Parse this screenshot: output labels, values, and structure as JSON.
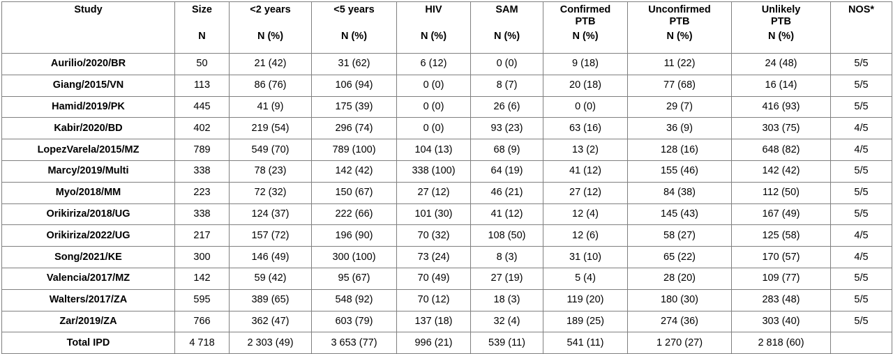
{
  "header": {
    "columns": [
      {
        "label": "Study",
        "sub": ""
      },
      {
        "label": "Size",
        "sub": "N"
      },
      {
        "label": "<2 years",
        "sub": "N (%)"
      },
      {
        "label": "<5 years",
        "sub": "N (%)"
      },
      {
        "label": "HIV",
        "sub": "N (%)"
      },
      {
        "label": "SAM",
        "sub": "N (%)"
      },
      {
        "label": "Confirmed\nPTB",
        "sub": "N (%)"
      },
      {
        "label": "Unconfirmed\nPTB",
        "sub": "N (%)"
      },
      {
        "label": "Unlikely\nPTB",
        "sub": "N (%)"
      },
      {
        "label": "NOS*",
        "sub": ""
      }
    ]
  },
  "rows": [
    [
      "Aurilio/2020/BR",
      "50",
      "21 (42)",
      "31 (62)",
      "6 (12)",
      "0 (0)",
      "9 (18)",
      "11 (22)",
      "24 (48)",
      "5/5"
    ],
    [
      "Giang/2015/VN",
      "113",
      "86 (76)",
      "106 (94)",
      "0 (0)",
      "8 (7)",
      "20 (18)",
      "77 (68)",
      "16 (14)",
      "5/5"
    ],
    [
      "Hamid/2019/PK",
      "445",
      "41 (9)",
      "175 (39)",
      "0 (0)",
      "26 (6)",
      "0 (0)",
      "29 (7)",
      "416 (93)",
      "5/5"
    ],
    [
      "Kabir/2020/BD",
      "402",
      "219 (54)",
      "296 (74)",
      "0 (0)",
      "93 (23)",
      "63 (16)",
      "36 (9)",
      "303 (75)",
      "4/5"
    ],
    [
      "LopezVarela/2015/MZ",
      "789",
      "549 (70)",
      "789 (100)",
      "104 (13)",
      "68 (9)",
      "13 (2)",
      "128 (16)",
      "648 (82)",
      "4/5"
    ],
    [
      "Marcy/2019/Multi",
      "338",
      "78 (23)",
      "142 (42)",
      "338 (100)",
      "64 (19)",
      "41 (12)",
      "155 (46)",
      "142 (42)",
      "5/5"
    ],
    [
      "Myo/2018/MM",
      "223",
      "72 (32)",
      "150 (67)",
      "27 (12)",
      "46 (21)",
      "27 (12)",
      "84 (38)",
      "112 (50)",
      "5/5"
    ],
    [
      "Orikiriza/2018/UG",
      "338",
      "124 (37)",
      "222 (66)",
      "101 (30)",
      "41 (12)",
      "12 (4)",
      "145 (43)",
      "167 (49)",
      "5/5"
    ],
    [
      "Orikiriza/2022/UG",
      "217",
      "157 (72)",
      "196 (90)",
      "70 (32)",
      "108 (50)",
      "12 (6)",
      "58 (27)",
      "125 (58)",
      "4/5"
    ],
    [
      "Song/2021/KE",
      "300",
      "146 (49)",
      "300 (100)",
      "73 (24)",
      "8 (3)",
      "31 (10)",
      "65 (22)",
      "170 (57)",
      "4/5"
    ],
    [
      "Valencia/2017/MZ",
      "142",
      "59 (42)",
      "95 (67)",
      "70 (49)",
      "27 (19)",
      "5 (4)",
      "28 (20)",
      "109 (77)",
      "5/5"
    ],
    [
      "Walters/2017/ZA",
      "595",
      "389 (65)",
      "548 (92)",
      "70 (12)",
      "18 (3)",
      "119 (20)",
      "180 (30)",
      "283 (48)",
      "5/5"
    ],
    [
      "Zar/2019/ZA",
      "766",
      "362 (47)",
      "603 (79)",
      "137 (18)",
      "32 (4)",
      "189 (25)",
      "274 (36)",
      "303 (40)",
      "5/5"
    ]
  ],
  "total": [
    "Total IPD",
    "4 718",
    "2 303 (49)",
    "3 653 (77)",
    "996 (21)",
    "539 (11)",
    "541 (11)",
    "1 270 (27)",
    "2 818 (60)",
    ""
  ]
}
